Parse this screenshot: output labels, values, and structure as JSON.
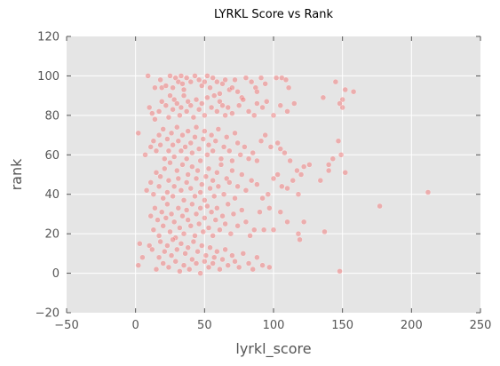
{
  "chart_data": {
    "type": "scatter",
    "title": "LYRKL Score vs Rank",
    "xlabel": "lyrkl_score",
    "ylabel": "rank",
    "xlim": [
      -50,
      250
    ],
    "ylim": [
      -20,
      120
    ],
    "xticks": [
      "−50",
      "0",
      "50",
      "100",
      "150",
      "200",
      "250"
    ],
    "yticks": [
      "−20",
      "0",
      "20",
      "40",
      "60",
      "80",
      "100",
      "120"
    ],
    "grid": true,
    "point_color": "#f08080",
    "background_color": "#e5e5e5",
    "grid_color": "#ffffff",
    "points": [
      [
        9,
        100
      ],
      [
        14,
        94
      ],
      [
        18,
        98
      ],
      [
        19,
        94
      ],
      [
        22,
        95
      ],
      [
        25,
        100
      ],
      [
        27,
        94
      ],
      [
        29,
        99
      ],
      [
        31,
        97
      ],
      [
        33,
        100
      ],
      [
        34,
        96
      ],
      [
        35,
        93
      ],
      [
        37,
        99
      ],
      [
        40,
        97
      ],
      [
        43,
        100
      ],
      [
        46,
        98
      ],
      [
        48,
        95
      ],
      [
        50,
        97
      ],
      [
        52,
        100
      ],
      [
        54,
        94
      ],
      [
        56,
        99
      ],
      [
        59,
        97
      ],
      [
        61,
        91
      ],
      [
        63,
        96
      ],
      [
        65,
        98
      ],
      [
        68,
        93
      ],
      [
        70,
        94
      ],
      [
        72,
        98
      ],
      [
        74,
        92
      ],
      [
        77,
        89
      ],
      [
        80,
        99
      ],
      [
        84,
        97
      ],
      [
        87,
        94
      ],
      [
        88,
        92
      ],
      [
        91,
        99
      ],
      [
        94,
        96
      ],
      [
        102,
        99
      ],
      [
        106,
        99
      ],
      [
        109,
        98
      ],
      [
        111,
        94
      ],
      [
        145,
        97
      ],
      [
        150,
        88
      ],
      [
        152,
        93
      ],
      [
        158,
        92
      ],
      [
        10,
        84
      ],
      [
        12,
        81
      ],
      [
        14,
        78
      ],
      [
        17,
        82
      ],
      [
        19,
        87
      ],
      [
        22,
        85
      ],
      [
        24,
        79
      ],
      [
        25,
        90
      ],
      [
        27,
        83
      ],
      [
        28,
        88
      ],
      [
        30,
        86
      ],
      [
        32,
        80
      ],
      [
        33,
        84
      ],
      [
        35,
        90
      ],
      [
        37,
        82
      ],
      [
        38,
        87
      ],
      [
        40,
        85
      ],
      [
        42,
        79
      ],
      [
        44,
        88
      ],
      [
        46,
        83
      ],
      [
        48,
        86
      ],
      [
        50,
        80
      ],
      [
        52,
        89
      ],
      [
        55,
        84
      ],
      [
        57,
        90
      ],
      [
        59,
        82
      ],
      [
        61,
        87
      ],
      [
        63,
        85
      ],
      [
        65,
        80
      ],
      [
        67,
        84
      ],
      [
        70,
        81
      ],
      [
        75,
        85
      ],
      [
        78,
        88
      ],
      [
        82,
        82
      ],
      [
        86,
        80
      ],
      [
        88,
        86
      ],
      [
        92,
        84
      ],
      [
        95,
        87
      ],
      [
        100,
        80
      ],
      [
        105,
        85
      ],
      [
        110,
        82
      ],
      [
        115,
        86
      ],
      [
        136,
        89
      ],
      [
        148,
        86
      ],
      [
        150,
        84
      ],
      [
        7,
        60
      ],
      [
        11,
        64
      ],
      [
        13,
        67
      ],
      [
        15,
        62
      ],
      [
        17,
        70
      ],
      [
        18,
        65
      ],
      [
        20,
        73
      ],
      [
        21,
        58
      ],
      [
        23,
        68
      ],
      [
        24,
        62
      ],
      [
        26,
        71
      ],
      [
        27,
        65
      ],
      [
        28,
        59
      ],
      [
        30,
        74
      ],
      [
        31,
        67
      ],
      [
        33,
        62
      ],
      [
        34,
        70
      ],
      [
        36,
        64
      ],
      [
        37,
        58
      ],
      [
        38,
        72
      ],
      [
        40,
        66
      ],
      [
        41,
        61
      ],
      [
        43,
        69
      ],
      [
        44,
        74
      ],
      [
        46,
        63
      ],
      [
        47,
        57
      ],
      [
        49,
        68
      ],
      [
        50,
        72
      ],
      [
        52,
        60
      ],
      [
        53,
        65
      ],
      [
        55,
        70
      ],
      [
        56,
        62
      ],
      [
        58,
        67
      ],
      [
        60,
        73
      ],
      [
        62,
        58
      ],
      [
        64,
        64
      ],
      [
        66,
        69
      ],
      [
        68,
        62
      ],
      [
        70,
        57
      ],
      [
        72,
        71
      ],
      [
        74,
        66
      ],
      [
        76,
        60
      ],
      [
        79,
        64
      ],
      [
        82,
        58
      ],
      [
        85,
        61
      ],
      [
        88,
        57
      ],
      [
        91,
        67
      ],
      [
        94,
        70
      ],
      [
        98,
        64
      ],
      [
        103,
        66
      ],
      [
        105,
        63
      ],
      [
        108,
        61
      ],
      [
        112,
        57
      ],
      [
        117,
        52
      ],
      [
        120,
        50
      ],
      [
        126,
        55
      ],
      [
        140,
        55
      ],
      [
        143,
        58
      ],
      [
        147,
        67
      ],
      [
        149,
        60
      ],
      [
        2,
        71
      ],
      [
        8,
        42
      ],
      [
        11,
        46
      ],
      [
        13,
        40
      ],
      [
        15,
        51
      ],
      [
        17,
        44
      ],
      [
        18,
        49
      ],
      [
        20,
        38
      ],
      [
        21,
        53
      ],
      [
        23,
        41
      ],
      [
        24,
        47
      ],
      [
        25,
        56
      ],
      [
        27,
        39
      ],
      [
        28,
        44
      ],
      [
        30,
        52
      ],
      [
        31,
        48
      ],
      [
        33,
        42
      ],
      [
        34,
        55
      ],
      [
        35,
        37
      ],
      [
        37,
        46
      ],
      [
        38,
        50
      ],
      [
        40,
        43
      ],
      [
        41,
        54
      ],
      [
        43,
        39
      ],
      [
        44,
        48
      ],
      [
        45,
        52
      ],
      [
        47,
        41
      ],
      [
        48,
        45
      ],
      [
        50,
        37
      ],
      [
        51,
        49
      ],
      [
        53,
        53
      ],
      [
        54,
        43
      ],
      [
        56,
        47
      ],
      [
        57,
        39
      ],
      [
        59,
        51
      ],
      [
        60,
        44
      ],
      [
        62,
        55
      ],
      [
        64,
        40
      ],
      [
        66,
        48
      ],
      [
        68,
        46
      ],
      [
        70,
        52
      ],
      [
        72,
        38
      ],
      [
        74,
        44
      ],
      [
        77,
        50
      ],
      [
        80,
        42
      ],
      [
        84,
        47
      ],
      [
        88,
        45
      ],
      [
        92,
        38
      ],
      [
        96,
        40
      ],
      [
        100,
        48
      ],
      [
        103,
        50
      ],
      [
        106,
        44
      ],
      [
        110,
        43
      ],
      [
        114,
        47
      ],
      [
        118,
        40
      ],
      [
        122,
        54
      ],
      [
        134,
        47
      ],
      [
        140,
        52
      ],
      [
        152,
        51
      ],
      [
        212,
        41
      ],
      [
        177,
        34
      ],
      [
        11,
        29
      ],
      [
        13,
        22
      ],
      [
        14,
        33
      ],
      [
        16,
        27
      ],
      [
        17,
        19
      ],
      [
        19,
        31
      ],
      [
        20,
        24
      ],
      [
        22,
        28
      ],
      [
        23,
        35
      ],
      [
        25,
        21
      ],
      [
        26,
        30
      ],
      [
        28,
        26
      ],
      [
        29,
        18
      ],
      [
        31,
        33
      ],
      [
        32,
        23
      ],
      [
        34,
        29
      ],
      [
        35,
        20
      ],
      [
        37,
        32
      ],
      [
        38,
        27
      ],
      [
        40,
        24
      ],
      [
        41,
        35
      ],
      [
        43,
        19
      ],
      [
        44,
        30
      ],
      [
        46,
        25
      ],
      [
        47,
        33
      ],
      [
        49,
        21
      ],
      [
        50,
        28
      ],
      [
        52,
        34
      ],
      [
        53,
        23
      ],
      [
        55,
        31
      ],
      [
        56,
        19
      ],
      [
        58,
        27
      ],
      [
        59,
        33
      ],
      [
        61,
        22
      ],
      [
        63,
        29
      ],
      [
        65,
        25
      ],
      [
        67,
        35
      ],
      [
        69,
        20
      ],
      [
        71,
        30
      ],
      [
        74,
        24
      ],
      [
        77,
        32
      ],
      [
        80,
        26
      ],
      [
        83,
        19
      ],
      [
        86,
        22
      ],
      [
        90,
        31
      ],
      [
        93,
        22
      ],
      [
        97,
        33
      ],
      [
        100,
        22
      ],
      [
        105,
        31
      ],
      [
        110,
        26
      ],
      [
        118,
        20
      ],
      [
        122,
        26
      ],
      [
        137,
        21
      ],
      [
        3,
        15
      ],
      [
        5,
        8
      ],
      [
        10,
        14
      ],
      [
        12,
        12
      ],
      [
        15,
        2
      ],
      [
        17,
        8
      ],
      [
        18,
        16
      ],
      [
        20,
        5
      ],
      [
        21,
        11
      ],
      [
        23,
        14
      ],
      [
        24,
        3
      ],
      [
        26,
        9
      ],
      [
        27,
        17
      ],
      [
        29,
        6
      ],
      [
        30,
        12
      ],
      [
        32,
        1
      ],
      [
        33,
        15
      ],
      [
        35,
        4
      ],
      [
        36,
        10
      ],
      [
        38,
        13
      ],
      [
        39,
        2
      ],
      [
        41,
        7
      ],
      [
        42,
        16
      ],
      [
        44,
        5
      ],
      [
        45,
        11
      ],
      [
        47,
        0
      ],
      [
        48,
        14
      ],
      [
        50,
        6
      ],
      [
        51,
        9
      ],
      [
        53,
        3
      ],
      [
        54,
        13
      ],
      [
        56,
        5
      ],
      [
        57,
        8
      ],
      [
        59,
        11
      ],
      [
        61,
        2
      ],
      [
        63,
        7
      ],
      [
        65,
        12
      ],
      [
        67,
        4
      ],
      [
        70,
        9
      ],
      [
        72,
        6
      ],
      [
        75,
        3
      ],
      [
        78,
        10
      ],
      [
        82,
        5
      ],
      [
        85,
        2
      ],
      [
        88,
        8
      ],
      [
        92,
        4
      ],
      [
        97,
        3
      ],
      [
        119,
        17
      ],
      [
        148,
        1
      ],
      [
        2,
        4
      ]
    ]
  }
}
